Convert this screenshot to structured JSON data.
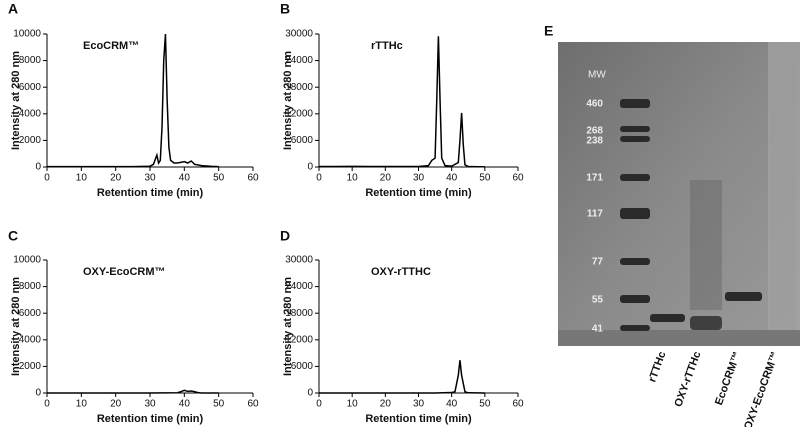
{
  "chart_data": [
    {
      "type": "line",
      "panel_label": "A",
      "title": "EcoCRM™",
      "x_label": "Retention time (min)",
      "y_label": "Intensity at 280 nm",
      "x": [
        0,
        5,
        10,
        15,
        20,
        25,
        30,
        31,
        32,
        32.5,
        33,
        33.5,
        34,
        34.5,
        35,
        35.5,
        36,
        37,
        38,
        40,
        41,
        42,
        43,
        45,
        48,
        50
      ],
      "values": [
        30,
        30,
        30,
        30,
        30,
        30,
        60,
        200,
        900,
        300,
        500,
        3000,
        8000,
        10000,
        5000,
        1500,
        500,
        300,
        300,
        400,
        300,
        450,
        200,
        100,
        50,
        30
      ],
      "color": "#000000",
      "xlim": [
        0,
        60
      ],
      "xticks": [
        0,
        10,
        20,
        30,
        40,
        50,
        60
      ],
      "ylim": [
        0,
        10000
      ],
      "yticks": [
        0,
        2000,
        4000,
        6000,
        8000,
        10000
      ]
    },
    {
      "type": "line",
      "panel_label": "B",
      "title": "rTTHc",
      "x_label": "Retention time (min)",
      "y_label": "Intensity at 280 nm",
      "x": [
        0,
        5,
        10,
        15,
        20,
        25,
        30,
        33,
        34,
        35,
        35.5,
        36,
        36.5,
        37,
        38,
        40,
        42,
        42.5,
        43,
        43.5,
        44,
        45,
        48,
        50
      ],
      "values": [
        100,
        100,
        150,
        100,
        100,
        100,
        100,
        300,
        1500,
        2000,
        15000,
        29500,
        15000,
        2000,
        300,
        200,
        1000,
        6000,
        12200,
        5000,
        500,
        100,
        50,
        50
      ],
      "color": "#000000",
      "xlim": [
        0,
        60
      ],
      "xticks": [
        0,
        10,
        20,
        30,
        40,
        50,
        60
      ],
      "ylim": [
        0,
        30000
      ],
      "yticks": [
        0,
        6000,
        12000,
        18000,
        24000,
        30000
      ]
    },
    {
      "type": "line",
      "panel_label": "C",
      "title": "OXY-EcoCRM™",
      "x_label": "Retention time (min)",
      "y_label": "Intensity at 280 nm",
      "x": [
        0,
        10,
        20,
        30,
        38,
        39,
        40,
        41,
        42,
        43,
        44,
        45,
        50
      ],
      "values": [
        0,
        0,
        0,
        0,
        20,
        100,
        200,
        120,
        150,
        100,
        30,
        0,
        0
      ],
      "color": "#000000",
      "xlim": [
        0,
        60
      ],
      "xticks": [
        0,
        10,
        20,
        30,
        40,
        50,
        60
      ],
      "ylim": [
        0,
        10000
      ],
      "yticks": [
        0,
        2000,
        4000,
        6000,
        8000,
        10000
      ]
    },
    {
      "type": "line",
      "panel_label": "D",
      "title": "OXY-rTTHC",
      "x_label": "Retention time (min)",
      "y_label": "Intensity at 280 nm",
      "x": [
        0,
        10,
        20,
        30,
        35,
        40,
        41,
        42,
        42.5,
        43,
        44,
        45,
        50
      ],
      "values": [
        0,
        0,
        0,
        0,
        0,
        100,
        300,
        4000,
        7400,
        4000,
        300,
        50,
        0
      ],
      "color": "#000000",
      "xlim": [
        0,
        60
      ],
      "xticks": [
        0,
        10,
        20,
        30,
        40,
        50,
        60
      ],
      "ylim": [
        0,
        30000
      ],
      "yticks": [
        0,
        6000,
        12000,
        18000,
        24000,
        30000
      ]
    }
  ],
  "gel": {
    "panel_label": "E",
    "mw_header": "MW",
    "markers": [
      "460",
      "268",
      "238",
      "171",
      "117",
      "77",
      "55",
      "41"
    ],
    "lanes": [
      "rTTHc",
      "OXY-rTTHc",
      "EcoCRM™",
      "OXY-EcoCRM™"
    ]
  }
}
